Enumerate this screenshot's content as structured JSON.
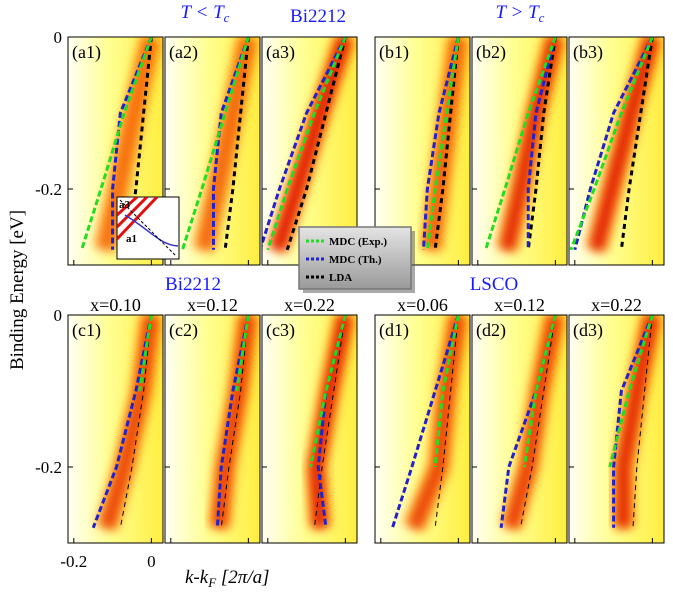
{
  "figure": {
    "heading_left": {
      "main": "T < T",
      "sub": "c"
    },
    "heading_top_mid": "Bi2212",
    "heading_right": {
      "main": "T > T",
      "sub": "c"
    },
    "heading_bottom_left": "Bi2212",
    "heading_bottom_right": "LSCO",
    "ylabel": "Binding Energy [eV]",
    "xlabel": {
      "main": "k-k",
      "sub": "F",
      "rest": " [2π/a]"
    },
    "inset_labels": [
      "a3",
      "a1"
    ]
  },
  "chart_data": [
    {
      "type": "line",
      "title": "(a1)",
      "energy": [
        0,
        -0.1,
        -0.2,
        -0.28
      ],
      "xlim": [
        -0.215,
        0.03
      ],
      "ylim": [
        -0.3,
        0
      ],
      "xticks": [
        -0.2,
        0
      ],
      "yticks": [
        0,
        -0.2
      ],
      "series": [
        {
          "name": "MDC (Exp.)",
          "color": "#22dd22",
          "values": [
            0,
            -0.07,
            -0.13,
            -0.18
          ]
        },
        {
          "name": "MDC (Th.)",
          "color": "#2222cc",
          "values": [
            0,
            -0.08,
            -0.1,
            -0.1
          ]
        },
        {
          "name": "LDA",
          "color": "#000000",
          "values": [
            0,
            -0.02,
            -0.04,
            -0.06
          ]
        }
      ]
    },
    {
      "type": "line",
      "title": "(a2)",
      "energy": [
        0,
        -0.1,
        -0.2,
        -0.28
      ],
      "xlim": [
        -0.215,
        0.03
      ],
      "ylim": [
        -0.3,
        0
      ],
      "xticks": [
        -0.2,
        0
      ],
      "yticks": [
        0,
        -0.2
      ],
      "series": [
        {
          "name": "MDC (Exp.)",
          "color": "#22dd22",
          "values": [
            0,
            -0.06,
            -0.12,
            -0.17
          ]
        },
        {
          "name": "MDC (Th.)",
          "color": "#2222cc",
          "values": [
            0,
            -0.07,
            -0.09,
            -0.09
          ]
        },
        {
          "name": "LDA",
          "color": "#000000",
          "values": [
            0,
            -0.02,
            -0.04,
            -0.06
          ]
        }
      ]
    },
    {
      "type": "line",
      "title": "(a3)",
      "energy": [
        0,
        -0.1,
        -0.2,
        -0.28
      ],
      "xlim": [
        -0.215,
        0.03
      ],
      "ylim": [
        -0.3,
        0
      ],
      "xticks": [
        -0.2,
        0
      ],
      "yticks": [
        0,
        -0.2
      ],
      "series": [
        {
          "name": "MDC (Exp.)",
          "color": "#22dd22",
          "values": [
            0,
            -0.08,
            -0.15,
            -0.2
          ]
        },
        {
          "name": "MDC (Th.)",
          "color": "#2222cc",
          "values": [
            0,
            -0.1,
            -0.17,
            -0.22
          ]
        },
        {
          "name": "LDA",
          "color": "#000000",
          "values": [
            0,
            -0.05,
            -0.1,
            -0.15
          ]
        }
      ]
    },
    {
      "type": "line",
      "title": "(b1)",
      "energy": [
        0,
        -0.1,
        -0.2,
        -0.28
      ],
      "xlim": [
        -0.215,
        0.03
      ],
      "ylim": [
        -0.3,
        0
      ],
      "xticks": [
        -0.2,
        0
      ],
      "yticks": [
        0,
        -0.2
      ],
      "series": [
        {
          "name": "MDC (Exp.)",
          "color": "#22dd22",
          "values": [
            0,
            -0.03,
            -0.06,
            -0.08
          ]
        },
        {
          "name": "MDC (Th.)",
          "color": "#2222cc",
          "values": [
            0,
            -0.05,
            -0.08,
            -0.09
          ]
        },
        {
          "name": "LDA",
          "color": "#000000",
          "values": [
            0,
            -0.02,
            -0.04,
            -0.06
          ]
        }
      ]
    },
    {
      "type": "line",
      "title": "(b2)",
      "energy": [
        0,
        -0.1,
        -0.2,
        -0.28
      ],
      "xlim": [
        -0.215,
        0.03
      ],
      "ylim": [
        -0.3,
        0
      ],
      "xticks": [
        -0.2,
        0
      ],
      "yticks": [
        0,
        -0.2
      ],
      "series": [
        {
          "name": "MDC (Exp.)",
          "color": "#22dd22",
          "values": [
            0,
            -0.07,
            -0.13,
            -0.18
          ]
        },
        {
          "name": "MDC (Th.)",
          "color": "#2222cc",
          "values": [
            0,
            -0.05,
            -0.07,
            -0.07
          ]
        },
        {
          "name": "LDA",
          "color": "#000000",
          "values": [
            0,
            -0.03,
            -0.05,
            -0.07
          ]
        }
      ]
    },
    {
      "type": "line",
      "title": "(b3)",
      "energy": [
        0,
        -0.1,
        -0.2,
        -0.28
      ],
      "xlim": [
        -0.215,
        0.03
      ],
      "ylim": [
        -0.3,
        0
      ],
      "xticks": [
        -0.2,
        0
      ],
      "yticks": [
        0,
        -0.2
      ],
      "series": [
        {
          "name": "MDC (Exp.)",
          "color": "#22dd22",
          "values": [
            0,
            -0.08,
            -0.15,
            -0.21
          ]
        },
        {
          "name": "MDC (Th.)",
          "color": "#2222cc",
          "values": [
            0,
            -0.1,
            -0.16,
            -0.2
          ]
        },
        {
          "name": "LDA",
          "color": "#000000",
          "values": [
            0,
            -0.03,
            -0.06,
            -0.08
          ]
        }
      ]
    },
    {
      "type": "line",
      "title": "(c1)",
      "subtitle": "x=0.10",
      "energy": [
        0,
        -0.1,
        -0.2,
        -0.28
      ],
      "xlim": [
        -0.215,
        0.03
      ],
      "ylim": [
        -0.3,
        0
      ],
      "xticks": [
        -0.2,
        0
      ],
      "yticks": [
        0,
        -0.2
      ],
      "series": [
        {
          "name": "MDC (Exp.)",
          "color": "#22dd22",
          "values": [
            0,
            -0.03,
            null,
            null
          ]
        },
        {
          "name": "MDC (Th.)",
          "color": "#2222cc",
          "values": [
            0,
            -0.04,
            -0.09,
            -0.15
          ]
        },
        {
          "name": "LDA",
          "color": "#000000",
          "values": [
            0,
            -0.02,
            -0.05,
            -0.08
          ]
        }
      ]
    },
    {
      "type": "line",
      "title": "(c2)",
      "subtitle": "x=0.12",
      "energy": [
        0,
        -0.1,
        -0.2,
        -0.28
      ],
      "xlim": [
        -0.215,
        0.03
      ],
      "ylim": [
        -0.3,
        0
      ],
      "xticks": [
        -0.2,
        0
      ],
      "yticks": [
        0,
        -0.2
      ],
      "series": [
        {
          "name": "MDC (Exp.)",
          "color": "#22dd22",
          "values": [
            0,
            -0.03,
            null,
            null
          ]
        },
        {
          "name": "MDC (Th.)",
          "color": "#2222cc",
          "values": [
            0,
            -0.04,
            -0.07,
            -0.08
          ]
        },
        {
          "name": "LDA",
          "color": "#000000",
          "values": [
            0,
            -0.02,
            -0.05,
            -0.07
          ]
        }
      ]
    },
    {
      "type": "line",
      "title": "(c3)",
      "subtitle": "x=0.22",
      "energy": [
        0,
        -0.1,
        -0.2,
        -0.28
      ],
      "xlim": [
        -0.215,
        0.03
      ],
      "ylim": [
        -0.3,
        0
      ],
      "xticks": [
        -0.2,
        0
      ],
      "yticks": [
        0,
        -0.2
      ],
      "series": [
        {
          "name": "MDC (Exp.)",
          "color": "#22dd22",
          "values": [
            0,
            -0.05,
            -0.09,
            null
          ]
        },
        {
          "name": "MDC (Th.)",
          "color": "#2222cc",
          "values": [
            0,
            -0.05,
            -0.07,
            -0.05
          ]
        },
        {
          "name": "LDA",
          "color": "#000000",
          "values": [
            0,
            -0.03,
            -0.06,
            -0.08
          ]
        }
      ]
    },
    {
      "type": "line",
      "title": "(d1)",
      "subtitle": "x=0.06",
      "energy": [
        0,
        -0.1,
        -0.2,
        -0.28
      ],
      "xlim": [
        -0.215,
        0.03
      ],
      "ylim": [
        -0.3,
        0
      ],
      "xticks": [
        -0.2,
        0
      ],
      "yticks": [
        0,
        -0.2
      ],
      "series": [
        {
          "name": "MDC (Exp.)",
          "color": "#22dd22",
          "values": [
            0,
            -0.04,
            -0.06,
            null
          ]
        },
        {
          "name": "MDC (Th.)",
          "color": "#2222cc",
          "values": [
            0,
            -0.06,
            -0.12,
            -0.17
          ]
        },
        {
          "name": "LDA",
          "color": "#000000",
          "values": [
            0,
            -0.02,
            -0.04,
            -0.06
          ]
        }
      ]
    },
    {
      "type": "line",
      "title": "(d2)",
      "subtitle": "x=0.12",
      "energy": [
        0,
        -0.1,
        -0.2,
        -0.28
      ],
      "xlim": [
        -0.215,
        0.03
      ],
      "ylim": [
        -0.3,
        0
      ],
      "xticks": [
        -0.2,
        0
      ],
      "yticks": [
        0,
        -0.2
      ],
      "series": [
        {
          "name": "MDC (Exp.)",
          "color": "#22dd22",
          "values": [
            0,
            -0.05,
            -0.08,
            null
          ]
        },
        {
          "name": "MDC (Th.)",
          "color": "#2222cc",
          "values": [
            0,
            -0.05,
            -0.12,
            -0.14
          ]
        },
        {
          "name": "LDA",
          "color": "#000000",
          "values": [
            0,
            -0.03,
            -0.06,
            -0.09
          ]
        }
      ]
    },
    {
      "type": "line",
      "title": "(d3)",
      "subtitle": "x=0.22",
      "energy": [
        0,
        -0.1,
        -0.2,
        -0.28
      ],
      "xlim": [
        -0.215,
        0.03
      ],
      "ylim": [
        -0.3,
        0
      ],
      "xticks": [
        -0.2,
        0
      ],
      "yticks": [
        0,
        -0.2
      ],
      "series": [
        {
          "name": "MDC (Exp.)",
          "color": "#22dd22",
          "values": [
            0,
            -0.06,
            -0.11,
            null
          ]
        },
        {
          "name": "MDC (Th.)",
          "color": "#2222cc",
          "values": [
            0,
            -0.08,
            -0.1,
            -0.1
          ]
        },
        {
          "name": "LDA",
          "color": "#000000",
          "values": [
            0,
            -0.02,
            -0.04,
            -0.05
          ]
        }
      ]
    }
  ]
}
